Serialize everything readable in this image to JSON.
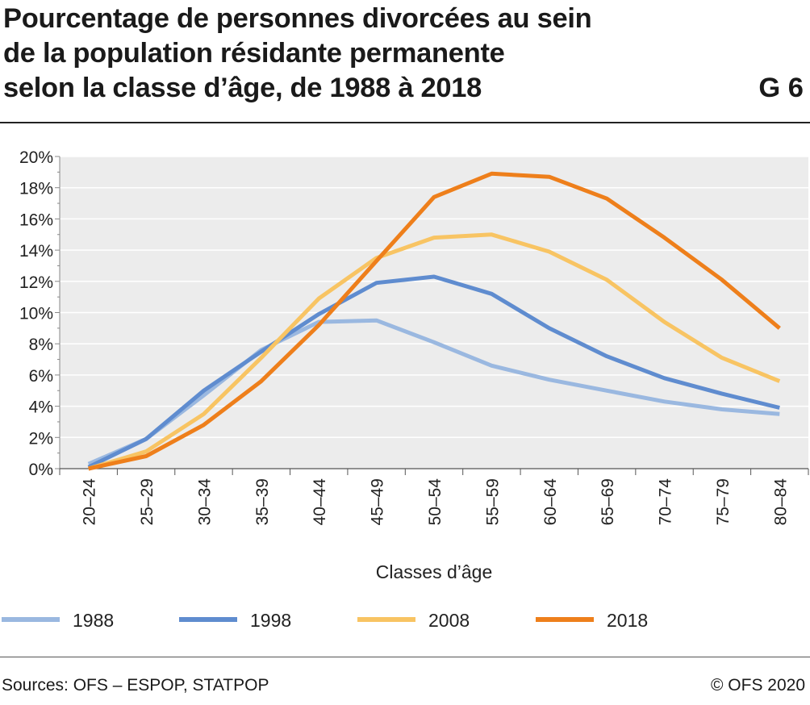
{
  "header": {
    "title_lines": [
      "Pourcentage de personnes divorcées au sein",
      "de la population résidante permanente",
      "selon la classe d’âge, de 1988 à 2018"
    ],
    "figure_id": "G 6"
  },
  "footer": {
    "sources": "Sources: OFS – ESPOP, STATPOP",
    "copyright": "© OFS 2020"
  },
  "chart_data": {
    "type": "line",
    "title": "Pourcentage de personnes divorcées au sein de la population résidante permanente selon la classe d’âge, de 1988 à 2018",
    "xlabel": "Classes d’âge",
    "ylabel": "",
    "categories": [
      "20–24",
      "25–29",
      "30–34",
      "35–39",
      "40–44",
      "45–49",
      "50–54",
      "55–59",
      "60–64",
      "65–69",
      "70–74",
      "75–79",
      "80–84"
    ],
    "ylim": [
      0,
      20
    ],
    "yticks": [
      0,
      2,
      4,
      6,
      8,
      10,
      12,
      14,
      16,
      18,
      20
    ],
    "ytick_labels": [
      "0%",
      "2%",
      "4%",
      "6%",
      "8%",
      "10%",
      "12%",
      "14%",
      "16%",
      "18%",
      "20%"
    ],
    "grid": true,
    "legend_position": "bottom",
    "series": [
      {
        "name": "1988",
        "color": "#9ab8e0",
        "values": [
          0.3,
          1.9,
          4.7,
          7.6,
          9.4,
          9.5,
          8.1,
          6.6,
          5.7,
          5.0,
          4.3,
          3.8,
          3.5
        ]
      },
      {
        "name": "1998",
        "color": "#5f8ccf",
        "values": [
          0.1,
          1.9,
          5.0,
          7.5,
          9.9,
          11.9,
          12.3,
          11.2,
          9.0,
          7.2,
          5.8,
          4.8,
          3.9
        ]
      },
      {
        "name": "2008",
        "color": "#f8c463",
        "values": [
          0.0,
          1.1,
          3.5,
          7.1,
          10.9,
          13.5,
          14.8,
          15.0,
          13.9,
          12.1,
          9.4,
          7.1,
          5.6
        ]
      },
      {
        "name": "2018",
        "color": "#ee7f1b",
        "values": [
          0.0,
          0.8,
          2.8,
          5.6,
          9.2,
          13.3,
          17.4,
          18.9,
          18.7,
          17.3,
          14.8,
          12.1,
          9.0
        ]
      }
    ]
  }
}
